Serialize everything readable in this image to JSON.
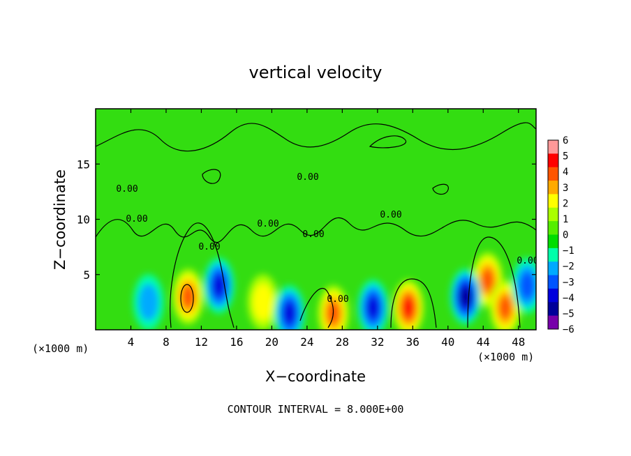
{
  "chart_data": {
    "type": "heatmap",
    "title": "vertical velocity",
    "xlabel": "X−coordinate",
    "ylabel": "Z−coordinate",
    "x_unit_left": "(×1000 m)",
    "x_unit_right": "(×1000 m)",
    "xlim": [
      0,
      50
    ],
    "ylim": [
      0,
      20
    ],
    "x_ticks": [
      "4",
      "8",
      "12",
      "16",
      "20",
      "24",
      "28",
      "32",
      "36",
      "40",
      "44",
      "48"
    ],
    "y_ticks": [
      "5",
      "10",
      "15"
    ],
    "colorbar": {
      "ticks": [
        "6",
        "5",
        "4",
        "3",
        "2",
        "1",
        "0",
        "−1",
        "−2",
        "−3",
        "−4",
        "−5",
        "−6"
      ],
      "range": [
        -6,
        6
      ],
      "colors": [
        "#ff9999",
        "#ff0000",
        "#ff5500",
        "#ffaa00",
        "#ffff00",
        "#aaff00",
        "#55ee00",
        "#00dd00",
        "#00ffaa",
        "#00aaff",
        "#0055ff",
        "#0000dd",
        "#000099",
        "#7700aa"
      ]
    },
    "contour_labels": [
      "0.00",
      "0.00",
      "0.00",
      "0.00",
      "0.00",
      "0.00",
      "0.00",
      "0.00",
      "0.00"
    ],
    "contour_interval": "CONTOUR INTERVAL = 8.000E+00",
    "features": [
      {
        "x": 10.5,
        "z": 3.0,
        "w": 4.0,
        "kind": "updraft"
      },
      {
        "x": 44.5,
        "z": 4.5,
        "w": 3.5,
        "kind": "updraft"
      },
      {
        "x": 46.5,
        "z": 2.0,
        "w": 4.0,
        "kind": "updraft"
      },
      {
        "x": 35.5,
        "z": 2.0,
        "w": 4.5,
        "kind": "updraft"
      },
      {
        "x": 27.0,
        "z": 1.5,
        "w": 3.5,
        "kind": "updraft"
      },
      {
        "x": 19.0,
        "z": 2.5,
        "w": 2.0,
        "kind": "updraft"
      },
      {
        "x": 14.0,
        "z": 4.0,
        "w": -3.5,
        "kind": "downdraft"
      },
      {
        "x": 22.0,
        "z": 1.5,
        "w": -4.0,
        "kind": "downdraft"
      },
      {
        "x": 31.5,
        "z": 2.0,
        "w": -3.5,
        "kind": "downdraft"
      },
      {
        "x": 42.0,
        "z": 3.0,
        "w": -5.0,
        "kind": "downdraft"
      },
      {
        "x": 49.0,
        "z": 4.0,
        "w": -3.0,
        "kind": "downdraft"
      },
      {
        "x": 6.0,
        "z": 2.5,
        "w": -2.0,
        "kind": "downdraft"
      }
    ]
  }
}
